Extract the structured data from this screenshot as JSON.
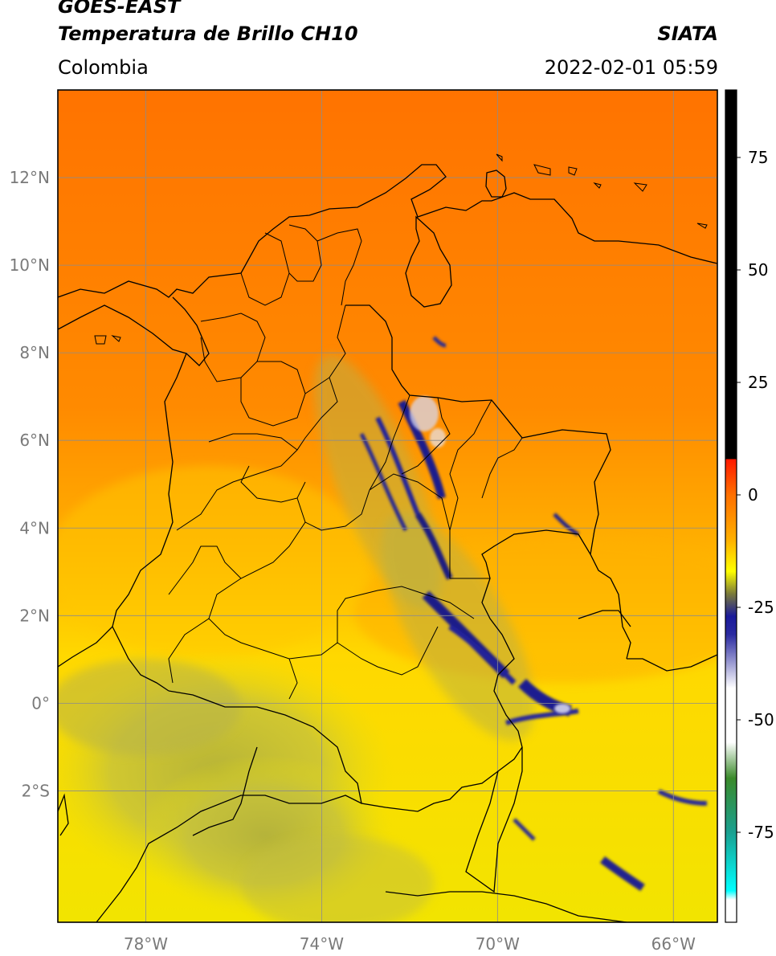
{
  "header": {
    "title_line1": "GOES-EAST",
    "title_line2": "Temperatura de Brillo CH10",
    "region": "Colombia",
    "brand": "SIATA",
    "datetime": "2022-02-01 05:59"
  },
  "map": {
    "lon_range": [
      -80.0,
      -65.0
    ],
    "lat_range": [
      -5.0,
      14.0
    ],
    "grid": true,
    "lat_ticks": [
      {
        "value": 12,
        "label": "12°N"
      },
      {
        "value": 10,
        "label": "10°N"
      },
      {
        "value": 8,
        "label": "8°N"
      },
      {
        "value": 6,
        "label": "6°N"
      },
      {
        "value": 4,
        "label": "4°N"
      },
      {
        "value": 2,
        "label": "2°N"
      },
      {
        "value": 0,
        "label": "0°"
      },
      {
        "value": -2,
        "label": "2°S"
      }
    ],
    "lon_ticks": [
      {
        "value": -78,
        "label": "78°W"
      },
      {
        "value": -74,
        "label": "74°W"
      },
      {
        "value": -70,
        "label": "70°W"
      },
      {
        "value": -66,
        "label": "66°W"
      }
    ],
    "colors": {
      "warm_orange": "#ff7a00",
      "orange": "#ff9800",
      "yellow": "#f6e000",
      "olive": "#c8c438",
      "navy": "#1a1a8a",
      "border": "#000000",
      "grid": "#8c8c8c"
    }
  },
  "colorbar": {
    "range": [
      -95,
      90
    ],
    "ticks": [
      {
        "value": 75,
        "label": "75"
      },
      {
        "value": 50,
        "label": "50"
      },
      {
        "value": 25,
        "label": "25"
      },
      {
        "value": 0,
        "label": "0"
      },
      {
        "value": -25,
        "label": "-25"
      },
      {
        "value": -50,
        "label": "-50"
      },
      {
        "value": -75,
        "label": "-75"
      }
    ],
    "stops": [
      {
        "value": 90,
        "color": "#000000"
      },
      {
        "value": 8,
        "color": "#000000"
      },
      {
        "value": 7.9,
        "color": "#ff1a00"
      },
      {
        "value": 0,
        "color": "#ff7000"
      },
      {
        "value": -10,
        "color": "#ffb000"
      },
      {
        "value": -17,
        "color": "#ffff00"
      },
      {
        "value": -22,
        "color": "#7a7a3a"
      },
      {
        "value": -27,
        "color": "#1a1a9a"
      },
      {
        "value": -31,
        "color": "#2a2aa0"
      },
      {
        "value": -43,
        "color": "#ffffff"
      },
      {
        "value": -55,
        "color": "#ffffff"
      },
      {
        "value": -63,
        "color": "#3a8a2a"
      },
      {
        "value": -75,
        "color": "#1aa090"
      },
      {
        "value": -88,
        "color": "#00ffff"
      },
      {
        "value": -90,
        "color": "#ffffff"
      },
      {
        "value": -95,
        "color": "#ffffff"
      }
    ]
  }
}
